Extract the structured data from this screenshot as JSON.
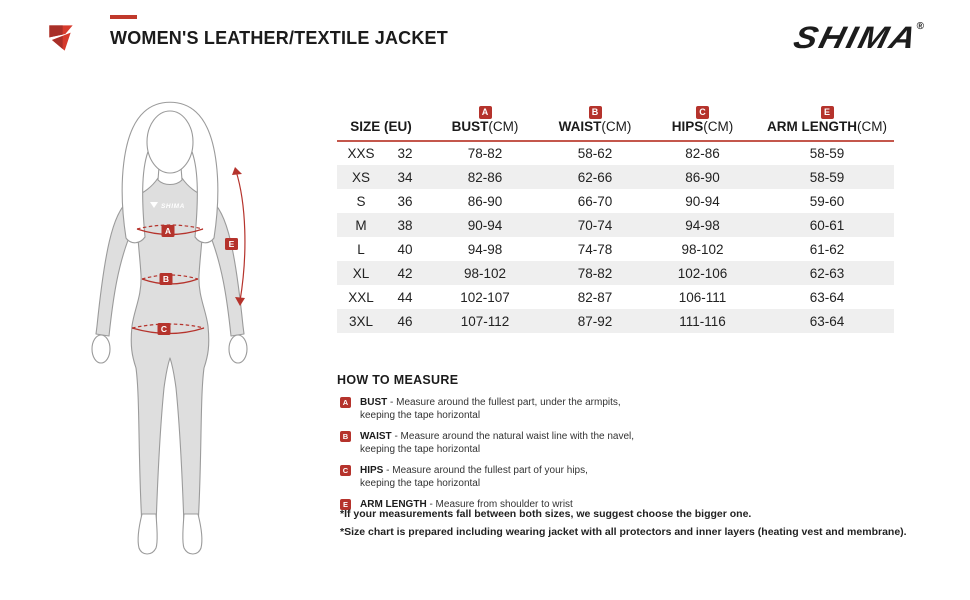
{
  "header": {
    "title": "WOMEN'S LEATHER/TEXTILE JACKET",
    "brand_wordmark": "SHIMA",
    "registered_mark": "®"
  },
  "figure": {
    "chest_logo_text": "SHIMA",
    "bust_badge": "A",
    "waist_badge": "B",
    "hips_badge": "C",
    "arm_badge": "E"
  },
  "size_table": {
    "header": {
      "size_label": "SIZE (EU)",
      "columns": [
        {
          "badge": "A",
          "name": "BUST",
          "unit": "(CM)"
        },
        {
          "badge": "B",
          "name": "WAIST",
          "unit": "(CM)"
        },
        {
          "badge": "C",
          "name": "HIPS",
          "unit": "(CM)"
        },
        {
          "badge": "E",
          "name": "ARM LENGTH",
          "unit": "(CM)"
        }
      ]
    },
    "rows": [
      {
        "size": "XXS",
        "eu": "32",
        "bust": "78-82",
        "waist": "58-62",
        "hips": "82-86",
        "arm_length": "58-59"
      },
      {
        "size": "XS",
        "eu": "34",
        "bust": "82-86",
        "waist": "62-66",
        "hips": "86-90",
        "arm_length": "58-59"
      },
      {
        "size": "S",
        "eu": "36",
        "bust": "86-90",
        "waist": "66-70",
        "hips": "90-94",
        "arm_length": "59-60"
      },
      {
        "size": "M",
        "eu": "38",
        "bust": "90-94",
        "waist": "70-74",
        "hips": "94-98",
        "arm_length": "60-61"
      },
      {
        "size": "L",
        "eu": "40",
        "bust": "94-98",
        "waist": "74-78",
        "hips": "98-102",
        "arm_length": "61-62"
      },
      {
        "size": "XL",
        "eu": "42",
        "bust": "98-102",
        "waist": "78-82",
        "hips": "102-106",
        "arm_length": "62-63"
      },
      {
        "size": "XXL",
        "eu": "44",
        "bust": "102-107",
        "waist": "82-87",
        "hips": "106-111",
        "arm_length": "63-64"
      },
      {
        "size": "3XL",
        "eu": "46",
        "bust": "107-112",
        "waist": "87-92",
        "hips": "111-116",
        "arm_length": "63-64"
      }
    ]
  },
  "how_to_measure": {
    "heading": "HOW TO MEASURE",
    "items": [
      {
        "badge": "A",
        "term": "BUST",
        "desc": "- Measure around the fullest part, under the armpits,",
        "desc2": "keeping the tape horizontal"
      },
      {
        "badge": "B",
        "term": "WAIST",
        "desc": "- Measure around the natural waist line with the navel,",
        "desc2": "keeping the tape horizontal"
      },
      {
        "badge": "C",
        "term": "HIPS",
        "desc": "- Measure around the fullest part of your hips,",
        "desc2": "keeping the tape horizontal"
      },
      {
        "badge": "E",
        "term": "ARM LENGTH",
        "desc": "- Measure from shoulder to wrist",
        "desc2": ""
      }
    ]
  },
  "footnotes": [
    "*If your measurements fall between both sizes, we suggest choose the bigger one.",
    "*Size chart is prepared including wearing jacket with all protectors and inner layers (heating vest and membrane)."
  ],
  "colors": {
    "accent_red": "#c0392b",
    "badge_red": "#b5332c",
    "row_stripe": "#efefef",
    "logo_red_dark": "#a82f28",
    "logo_red_bright": "#d63a2c"
  }
}
